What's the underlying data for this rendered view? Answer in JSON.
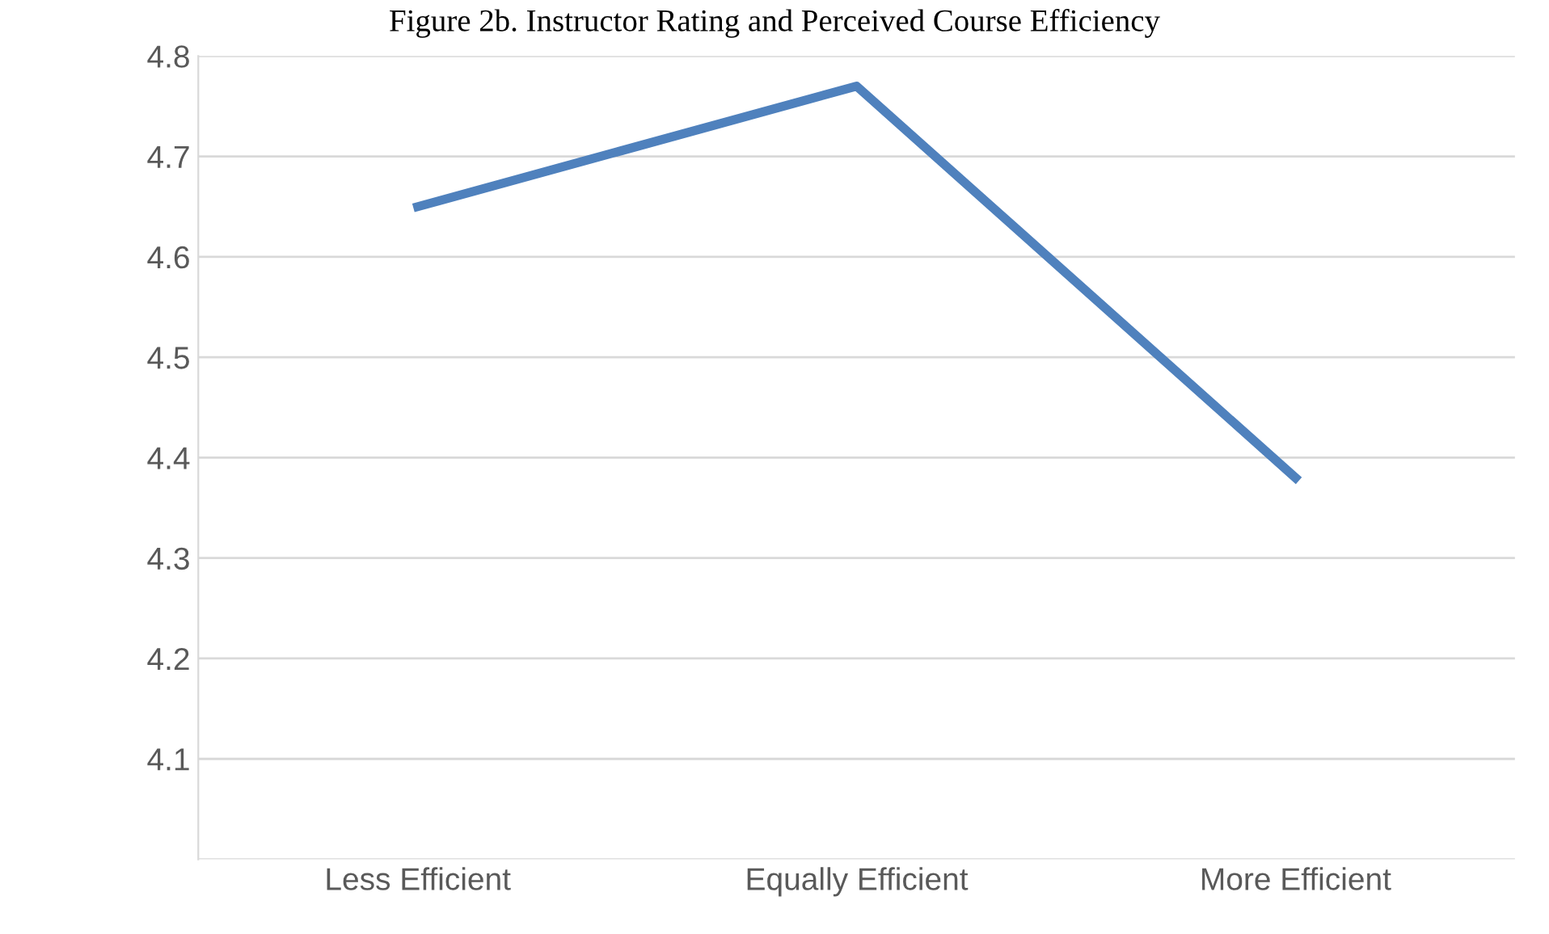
{
  "chart_data": {
    "type": "line",
    "title": "Figure 2b. Instructor Rating and Perceived Course Efficiency",
    "categories": [
      "Less Efficient",
      "Equally Efficient",
      "More Efficient"
    ],
    "series": [
      {
        "color": "#4f81bd",
        "values": [
          4.65,
          4.77,
          4.38
        ]
      }
    ],
    "ylim": [
      4.0,
      4.8
    ],
    "yticks": [
      {
        "value": 4.0,
        "label": null
      },
      4.1,
      4.2,
      4.3,
      4.4,
      4.5,
      4.6,
      4.7,
      4.8
    ],
    "grid": "y",
    "legend": false,
    "marker": "none",
    "line_style": "solid"
  }
}
